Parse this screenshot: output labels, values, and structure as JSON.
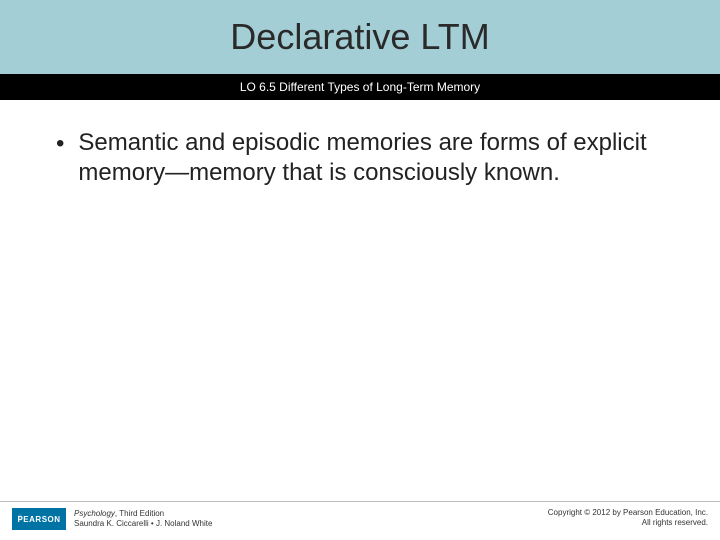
{
  "header": {
    "title": "Declarative LTM",
    "background_color": "#a4ced6",
    "title_color": "#2a2a2a",
    "title_fontsize": 36
  },
  "subtitle": {
    "text": "LO 6.5 Different Types of Long-Term Memory",
    "background_color": "#000000",
    "text_color": "#ffffff",
    "fontsize": 12
  },
  "content": {
    "bullets": [
      "Semantic and episodic memories are forms of explicit memory—memory that is consciously known."
    ],
    "fontsize": 24,
    "text_color": "#222222"
  },
  "footer": {
    "logo_text": "PEARSON",
    "logo_bg": "#0073a5",
    "book_title": "Psychology",
    "edition": ", Third Edition",
    "authors": "Saundra K. Ciccarelli • J. Noland White",
    "copyright_line1": "Copyright © 2012 by Pearson Education, Inc.",
    "copyright_line2": "All rights reserved.",
    "border_color": "#bdbdbd"
  }
}
